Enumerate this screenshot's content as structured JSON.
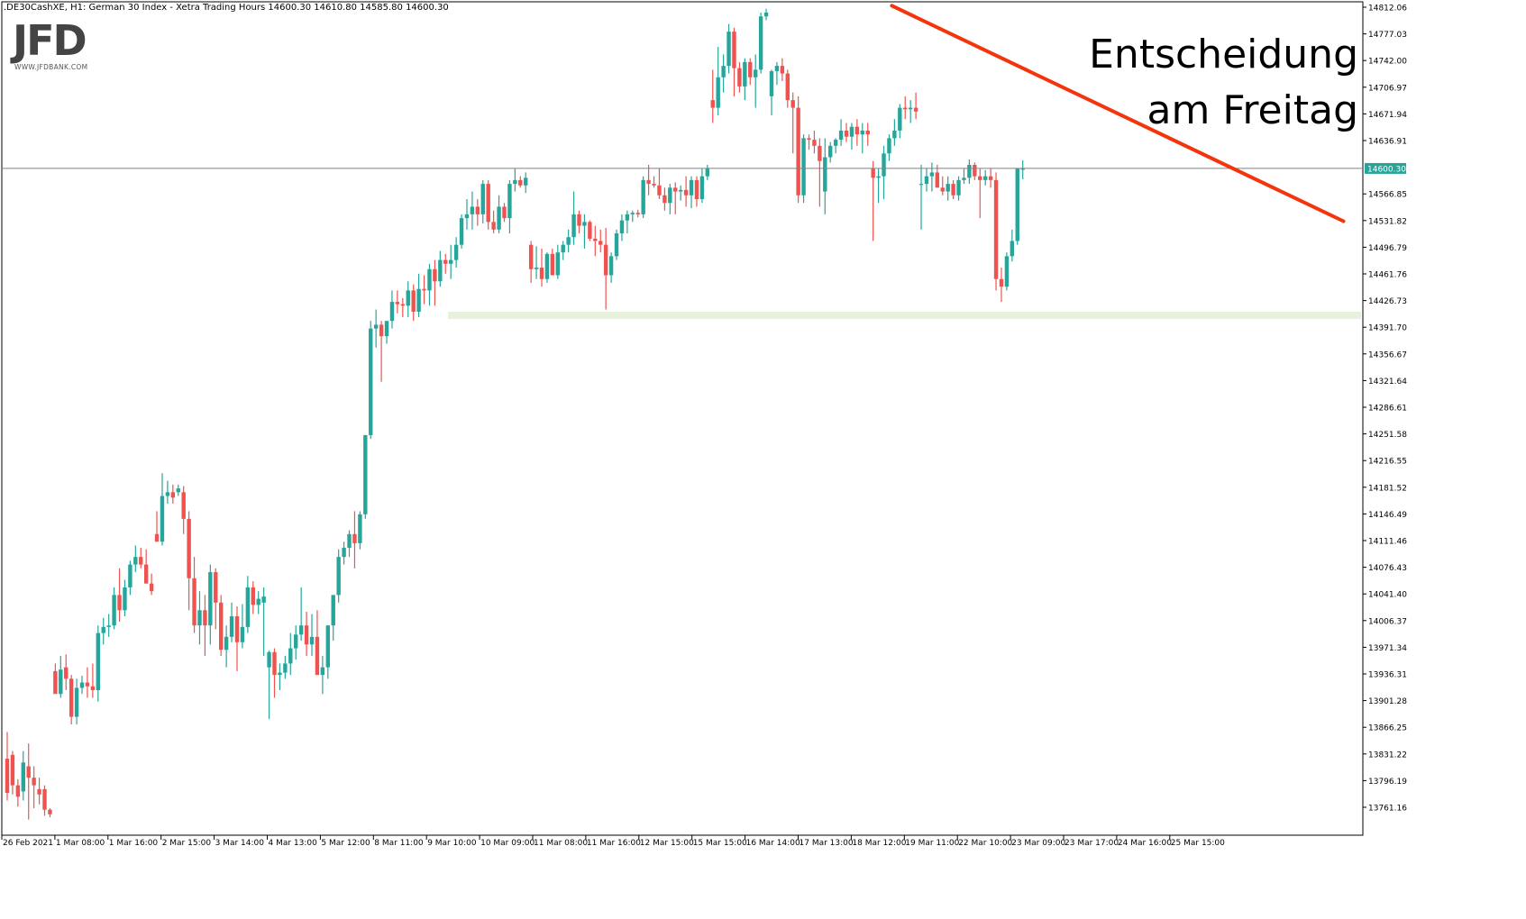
{
  "header": {
    "text": ".DE30CashXE, H1:  German 30 Index  - Xetra Trading Hours  14600.30 14610.80 14585.80 14600.30"
  },
  "logo": {
    "text": "JFD",
    "subtext": "WWW.JFDBANK.COM"
  },
  "annotation": {
    "line1": "Entscheidung",
    "line2": "am Freitag"
  },
  "colors": {
    "bull": "#26a69a",
    "bear": "#ef5350",
    "trendline": "#f4340c",
    "support_zone": "#e6f2dc",
    "price_line": "#808080",
    "price_tag": "#26a69a"
  },
  "chart_data": {
    "type": "candlestick",
    "ylim": [
      13738,
      14818
    ],
    "y_ticks": [
      "14812.06",
      "14777.03",
      "14742.00",
      "14706.97",
      "14671.94",
      "14636.91",
      "14600.30",
      "14566.85",
      "14531.82",
      "14496.79",
      "14461.76",
      "14426.73",
      "14391.70",
      "14356.67",
      "14321.64",
      "14286.61",
      "14251.58",
      "14216.55",
      "14181.52",
      "14146.49",
      "14111.46",
      "14076.43",
      "14041.40",
      "14006.37",
      "13971.34",
      "13936.31",
      "13901.28",
      "13866.25",
      "13831.22",
      "13796.19",
      "13761.16"
    ],
    "current_price": "14600.30",
    "x_labels": [
      "26 Feb 2021",
      "1 Mar 08:00",
      "1 Mar 16:00",
      "2 Mar 15:00",
      "3 Mar 14:00",
      "4 Mar 13:00",
      "5 Mar 12:00",
      "8 Mar 11:00",
      "9 Mar 10:00",
      "10 Mar 09:00",
      "11 Mar 08:00",
      "11 Mar 16:00",
      "12 Mar 15:00",
      "15 Mar 15:00",
      "16 Mar 14:00",
      "17 Mar 13:00",
      "18 Mar 12:00",
      "19 Mar 11:00",
      "22 Mar 10:00",
      "23 Mar 09:00",
      "23 Mar 17:00",
      "24 Mar 16:00",
      "25 Mar 15:00"
    ],
    "trendline": [
      [
        165.5,
        14814
      ],
      [
        250,
        14531
      ]
    ],
    "support_zone": [
      14412,
      14404
    ],
    "support_zone_start": 82.5,
    "candles": [
      [
        13825,
        13860,
        13770,
        13780
      ],
      [
        13830,
        13835,
        13778,
        13790
      ],
      [
        13790,
        13798,
        13762,
        13775
      ],
      [
        13782,
        13835,
        13770,
        13820
      ],
      [
        13815,
        13845,
        13745,
        13800
      ],
      [
        13800,
        13815,
        13760,
        13790
      ],
      [
        13785,
        13800,
        13765,
        13778
      ],
      [
        13785,
        13790,
        13750,
        13758
      ],
      [
        13758,
        13760,
        13748,
        13752
      ],
      [
        13940,
        13950,
        13918,
        13910
      ],
      [
        13910,
        13960,
        13905,
        13942
      ],
      [
        13945,
        13962,
        13915,
        13930
      ],
      [
        13930,
        13935,
        13870,
        13880
      ],
      [
        13880,
        13930,
        13870,
        13918
      ],
      [
        13918,
        13934,
        13910,
        13925
      ],
      [
        13925,
        13945,
        13905,
        13920
      ],
      [
        13920,
        13950,
        13905,
        13915
      ],
      [
        13915,
        14000,
        13900,
        13990
      ],
      [
        13990,
        14010,
        13975,
        13998
      ],
      [
        13998,
        14015,
        13985,
        14000
      ],
      [
        14000,
        14050,
        13995,
        14040
      ],
      [
        14040,
        14075,
        14005,
        14020
      ],
      [
        14020,
        14060,
        14012,
        14050
      ],
      [
        14050,
        14085,
        14040,
        14080
      ],
      [
        14080,
        14105,
        14070,
        14090
      ],
      [
        14090,
        14102,
        14075,
        14080
      ],
      [
        14080,
        14100,
        14060,
        14055
      ],
      [
        14055,
        14068,
        14040,
        14045
      ],
      [
        14120,
        14150,
        14115,
        14110
      ],
      [
        14110,
        14200,
        14105,
        14170
      ],
      [
        14170,
        14190,
        14160,
        14175
      ],
      [
        14175,
        14185,
        14160,
        14168
      ],
      [
        14175,
        14185,
        14170,
        14180
      ],
      [
        14175,
        14183,
        14120,
        14140
      ],
      [
        14140,
        14150,
        14020,
        14062
      ],
      [
        14062,
        14090,
        13990,
        14000
      ],
      [
        14000,
        14045,
        13975,
        14020
      ],
      [
        14020,
        14040,
        13960,
        14000
      ],
      [
        14000,
        14080,
        13975,
        14070
      ],
      [
        14070,
        14075,
        13995,
        14030
      ],
      [
        14030,
        14040,
        13960,
        13968
      ],
      [
        13968,
        14000,
        13945,
        13985
      ],
      [
        13985,
        14030,
        13978,
        14012
      ],
      [
        14012,
        14025,
        13940,
        13978
      ],
      [
        13978,
        14028,
        13970,
        13998
      ],
      [
        13998,
        14065,
        13990,
        14050
      ],
      [
        14050,
        14058,
        14015,
        14027
      ],
      [
        14027,
        14045,
        14015,
        14035
      ],
      [
        14030,
        14050,
        13960,
        14038
      ],
      [
        13945,
        13967,
        13877,
        13965
      ],
      [
        13965,
        13970,
        13905,
        13935
      ],
      [
        13935,
        13950,
        13915,
        13938
      ],
      [
        13938,
        13960,
        13930,
        13950
      ],
      [
        13950,
        13990,
        13935,
        13970
      ],
      [
        13970,
        14000,
        13955,
        13988
      ],
      [
        13988,
        14050,
        13980,
        14000
      ],
      [
        14000,
        14018,
        13960,
        13975
      ],
      [
        13975,
        14015,
        13960,
        13985
      ],
      [
        13985,
        14020,
        13945,
        13935
      ],
      [
        13935,
        13960,
        13910,
        13945
      ],
      [
        13945,
        14000,
        13930,
        14000
      ],
      [
        14000,
        14030,
        13980,
        14040
      ],
      [
        14040,
        14100,
        14030,
        14090
      ],
      [
        14090,
        14110,
        14080,
        14102
      ],
      [
        14102,
        14125,
        14090,
        14120
      ],
      [
        14120,
        14150,
        14075,
        14108
      ],
      [
        14108,
        14150,
        14100,
        14146
      ],
      [
        14146,
        14250,
        14140,
        14250
      ],
      [
        14250,
        14400,
        14245,
        14390
      ],
      [
        14390,
        14415,
        14365,
        14395
      ],
      [
        14395,
        14400,
        14320,
        14380
      ],
      [
        14380,
        14398,
        14370,
        14400
      ],
      [
        14400,
        14440,
        14390,
        14425
      ],
      [
        14425,
        14440,
        14410,
        14422
      ],
      [
        14422,
        14430,
        14405,
        14420
      ],
      [
        14420,
        14452,
        14405,
        14440
      ],
      [
        14440,
        14448,
        14400,
        14412
      ],
      [
        14412,
        14462,
        14405,
        14442
      ],
      [
        14442,
        14460,
        14422,
        14440
      ],
      [
        14440,
        14475,
        14420,
        14468
      ],
      [
        14468,
        14480,
        14420,
        14452
      ],
      [
        14452,
        14492,
        14445,
        14480
      ],
      [
        14480,
        14488,
        14462,
        14475
      ],
      [
        14475,
        14500,
        14455,
        14480
      ],
      [
        14480,
        14510,
        14470,
        14500
      ],
      [
        14500,
        14540,
        14495,
        14535
      ],
      [
        14535,
        14560,
        14520,
        14540
      ],
      [
        14540,
        14570,
        14520,
        14550
      ],
      [
        14550,
        14560,
        14525,
        14540
      ],
      [
        14540,
        14585,
        14528,
        14580
      ],
      [
        14580,
        14585,
        14520,
        14530
      ],
      [
        14530,
        14545,
        14515,
        14520
      ],
      [
        14520,
        14565,
        14515,
        14550
      ],
      [
        14550,
        14555,
        14530,
        14535
      ],
      [
        14535,
        14585,
        14515,
        14580
      ],
      [
        14580,
        14600,
        14570,
        14585
      ],
      [
        14585,
        14590,
        14575,
        14578
      ],
      [
        14578,
        14595,
        14568,
        14588
      ],
      [
        14500,
        14505,
        14450,
        14468
      ],
      [
        14468,
        14498,
        14455,
        14470
      ],
      [
        14470,
        14495,
        14445,
        14455
      ],
      [
        14455,
        14490,
        14450,
        14488
      ],
      [
        14488,
        14495,
        14460,
        14460
      ],
      [
        14460,
        14500,
        14455,
        14490
      ],
      [
        14490,
        14505,
        14480,
        14500
      ],
      [
        14500,
        14520,
        14490,
        14510
      ],
      [
        14510,
        14570,
        14500,
        14540
      ],
      [
        14540,
        14545,
        14515,
        14525
      ],
      [
        14525,
        14540,
        14495,
        14530
      ],
      [
        14530,
        14532,
        14505,
        14508
      ],
      [
        14508,
        14525,
        14485,
        14505
      ],
      [
        14505,
        14520,
        14490,
        14500
      ],
      [
        14500,
        14522,
        14415,
        14460
      ],
      [
        14460,
        14490,
        14450,
        14485
      ],
      [
        14485,
        14520,
        14480,
        14515
      ],
      [
        14515,
        14540,
        14505,
        14532
      ],
      [
        14532,
        14545,
        14515,
        14540
      ],
      [
        14540,
        14545,
        14530,
        14542
      ],
      [
        14542,
        14546,
        14536,
        14540
      ],
      [
        14540,
        14590,
        14535,
        14585
      ],
      [
        14585,
        14605,
        14565,
        14580
      ],
      [
        14580,
        14590,
        14575,
        14578
      ],
      [
        14578,
        14600,
        14560,
        14565
      ],
      [
        14565,
        14575,
        14545,
        14555
      ],
      [
        14555,
        14580,
        14540,
        14575
      ],
      [
        14575,
        14582,
        14540,
        14570
      ],
      [
        14570,
        14578,
        14558,
        14572
      ],
      [
        14572,
        14590,
        14550,
        14565
      ],
      [
        14565,
        14590,
        14548,
        14585
      ],
      [
        14585,
        14590,
        14550,
        14560
      ],
      [
        14560,
        14600,
        14555,
        14590
      ],
      [
        14590,
        14605,
        14585,
        14600
      ],
      [
        14690,
        14730,
        14660,
        14680
      ],
      [
        14680,
        14760,
        14670,
        14720
      ],
      [
        14720,
        14750,
        14700,
        14735
      ],
      [
        14735,
        14790,
        14725,
        14780
      ],
      [
        14780,
        14785,
        14695,
        14732
      ],
      [
        14732,
        14740,
        14700,
        14708
      ],
      [
        14708,
        14745,
        14690,
        14740
      ],
      [
        14740,
        14745,
        14710,
        14720
      ],
      [
        14720,
        14750,
        14680,
        14730
      ],
      [
        14730,
        14805,
        14725,
        14800
      ],
      [
        14800,
        14810,
        14795,
        14805
      ],
      [
        14695,
        14730,
        14670,
        14728
      ],
      [
        14728,
        14740,
        14710,
        14735
      ],
      [
        14735,
        14745,
        14715,
        14725
      ],
      [
        14725,
        14730,
        14680,
        14690
      ],
      [
        14690,
        14700,
        14620,
        14680
      ],
      [
        14680,
        14695,
        14555,
        14565
      ],
      [
        14565,
        14645,
        14555,
        14640
      ],
      [
        14640,
        14645,
        14625,
        14638
      ],
      [
        14638,
        14650,
        14620,
        14630
      ],
      [
        14630,
        14640,
        14550,
        14610
      ],
      [
        14570,
        14640,
        14540,
        14615
      ],
      [
        14615,
        14635,
        14608,
        14630
      ],
      [
        14630,
        14640,
        14620,
        14638
      ],
      [
        14638,
        14665,
        14630,
        14650
      ],
      [
        14650,
        14660,
        14635,
        14642
      ],
      [
        14642,
        14660,
        14625,
        14655
      ],
      [
        14655,
        14665,
        14630,
        14645
      ],
      [
        14645,
        14660,
        14620,
        14650
      ],
      [
        14650,
        14660,
        14630,
        14645
      ],
      [
        14600,
        14610,
        14505,
        14588
      ],
      [
        14588,
        14600,
        14555,
        14590
      ],
      [
        14590,
        14630,
        14560,
        14620
      ],
      [
        14620,
        14645,
        14610,
        14640
      ],
      [
        14640,
        14665,
        14630,
        14650
      ],
      [
        14650,
        14685,
        14640,
        14680
      ],
      [
        14680,
        14695,
        14665,
        14678
      ],
      [
        14678,
        14690,
        14660,
        14680
      ],
      [
        14680,
        14700,
        14665,
        14675
      ],
      [
        14580,
        14605,
        14520,
        14580
      ],
      [
        14580,
        14600,
        14570,
        14590
      ],
      [
        14590,
        14608,
        14570,
        14595
      ],
      [
        14595,
        14605,
        14575,
        14575
      ],
      [
        14575,
        14590,
        14565,
        14570
      ],
      [
        14570,
        14590,
        14558,
        14580
      ],
      [
        14580,
        14585,
        14560,
        14565
      ],
      [
        14565,
        14590,
        14558,
        14585
      ],
      [
        14585,
        14600,
        14580,
        14588
      ],
      [
        14588,
        14612,
        14580,
        14605
      ],
      [
        14605,
        14608,
        14585,
        14590
      ],
      [
        14590,
        14600,
        14535,
        14585
      ],
      [
        14585,
        14598,
        14578,
        14590
      ],
      [
        14590,
        14600,
        14575,
        14585
      ],
      [
        14585,
        14595,
        14440,
        14455
      ],
      [
        14455,
        14470,
        14425,
        14445
      ],
      [
        14445,
        14490,
        14440,
        14485
      ],
      [
        14485,
        14520,
        14478,
        14505
      ],
      [
        14505,
        14600,
        14500,
        14600
      ],
      [
        14600,
        14611,
        14586,
        14600
      ]
    ]
  }
}
